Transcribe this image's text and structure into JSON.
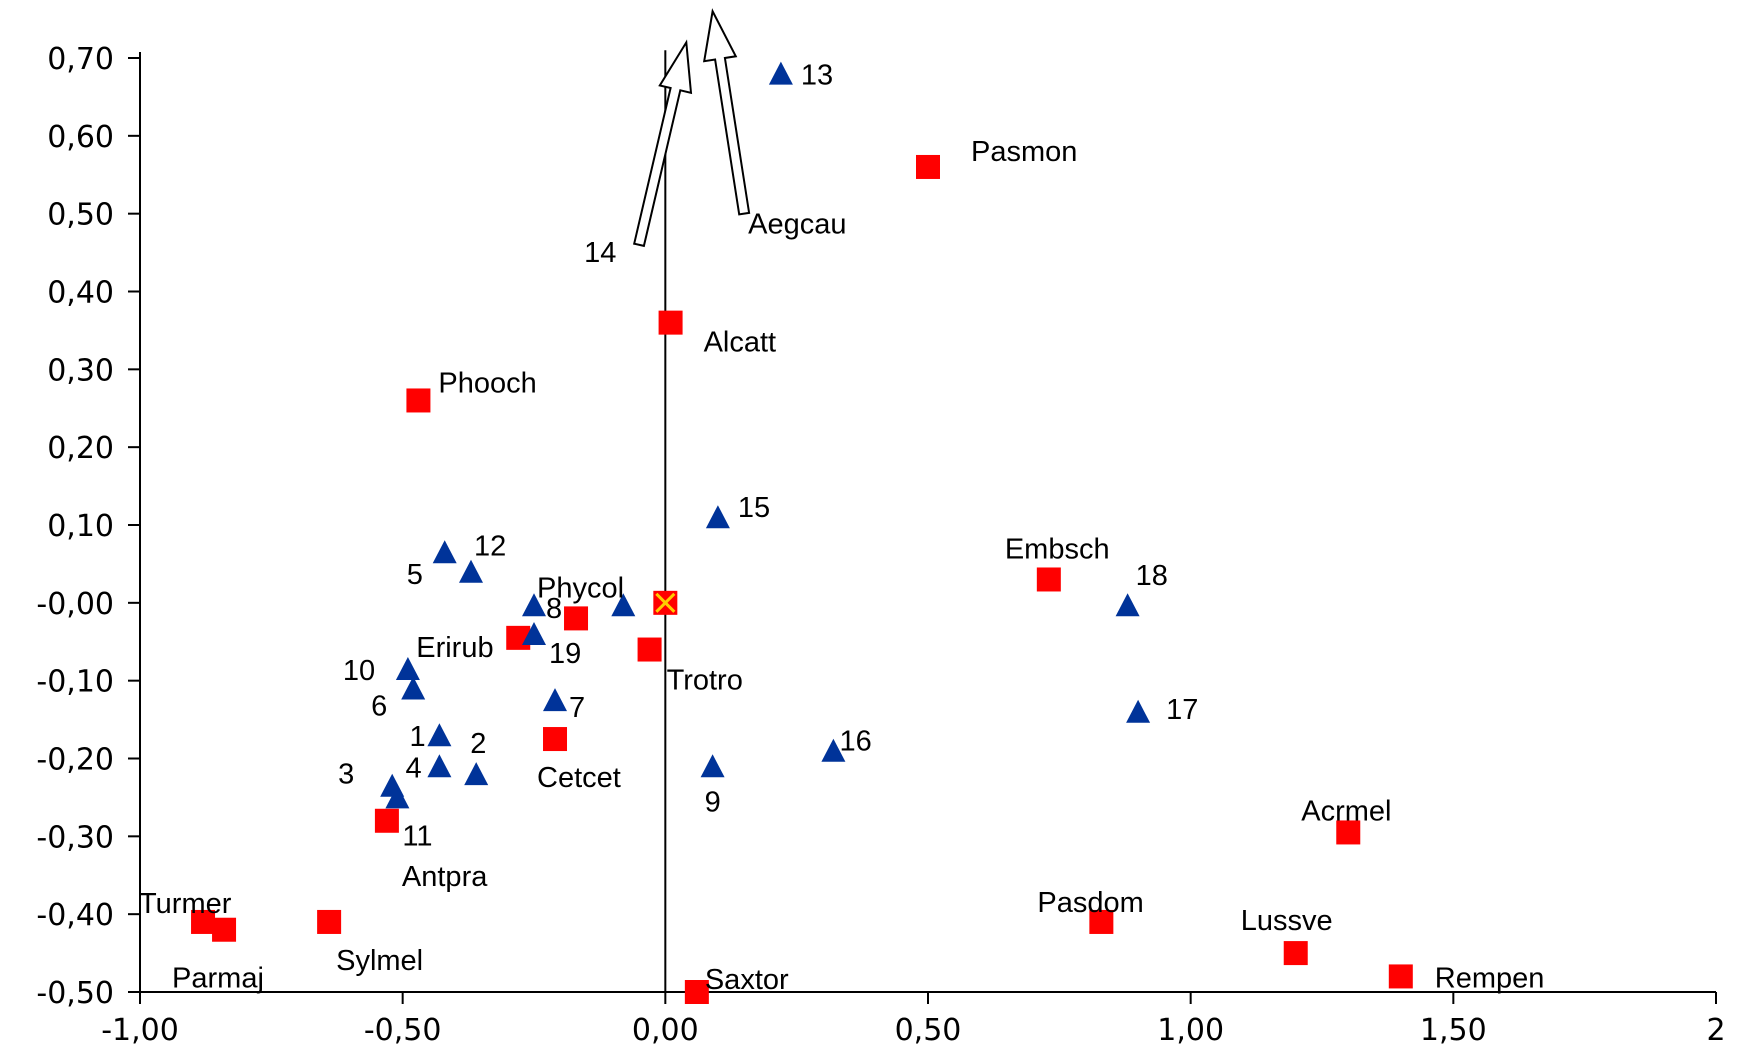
{
  "chart_data": {
    "type": "scatter",
    "title": "",
    "xlabel": "",
    "ylabel": "",
    "xlim": [
      -1.0,
      2.0
    ],
    "ylim": [
      -0.5,
      0.7
    ],
    "x_ticks": [
      "-1,00",
      "-0,50",
      "0,00",
      "0,50",
      "1,00",
      "1,50",
      "2"
    ],
    "x_tick_values": [
      -1.0,
      -0.5,
      0.0,
      0.5,
      1.0,
      1.5,
      2.0
    ],
    "y_ticks": [
      "0,70",
      "0,60",
      "0,50",
      "0,40",
      "0,30",
      "0,20",
      "0,10",
      "-0,00",
      "-0,10",
      "-0,20",
      "-0,30",
      "-0,40",
      "-0,50"
    ],
    "y_tick_values": [
      0.7,
      0.6,
      0.5,
      0.4,
      0.3,
      0.2,
      0.1,
      0.0,
      -0.1,
      -0.2,
      -0.3,
      -0.4,
      -0.5
    ],
    "grid": false,
    "colors": {
      "species": "#ff0000",
      "sites": "#003399",
      "centroid_fill": "#ff0000",
      "centroid_mark": "#ffcc00",
      "arrow_fill": "#ffffff"
    },
    "species": [
      {
        "label": "Pasmon",
        "x": 0.5,
        "y": 0.56
      },
      {
        "label": "Alcatt",
        "x": 0.01,
        "y": 0.36
      },
      {
        "label": "Phooch",
        "x": -0.47,
        "y": 0.26
      },
      {
        "label": "Embsch",
        "x": 0.73,
        "y": 0.03
      },
      {
        "label": "Phycol",
        "x": -0.17,
        "y": -0.02
      },
      {
        "label": "Erirub",
        "x": -0.28,
        "y": -0.045
      },
      {
        "label": "Trotro",
        "x": -0.03,
        "y": -0.06
      },
      {
        "label": "Cetcet",
        "x": -0.21,
        "y": -0.175
      },
      {
        "label": "Antpra",
        "x": -0.53,
        "y": -0.28
      },
      {
        "label": "Acrmel",
        "x": 1.3,
        "y": -0.295
      },
      {
        "label": "Turmer",
        "x": -0.88,
        "y": -0.41
      },
      {
        "label": "Parmaj",
        "x": -0.84,
        "y": -0.42
      },
      {
        "label": "Sylmel",
        "x": -0.64,
        "y": -0.41
      },
      {
        "label": "Pasdom",
        "x": 0.83,
        "y": -0.41
      },
      {
        "label": "Lussve",
        "x": 1.2,
        "y": -0.45
      },
      {
        "label": "Saxtor",
        "x": 0.06,
        "y": -0.5
      },
      {
        "label": "Rempen",
        "x": 1.4,
        "y": -0.48
      }
    ],
    "sites": [
      {
        "label": "13",
        "x": 0.22,
        "y": 0.68
      },
      {
        "label": "15",
        "x": 0.1,
        "y": 0.11
      },
      {
        "label": "5",
        "x": -0.42,
        "y": 0.065
      },
      {
        "label": "12",
        "x": -0.37,
        "y": 0.04
      },
      {
        "label": "8",
        "x": -0.25,
        "y": -0.003
      },
      {
        "label": "19",
        "x": -0.25,
        "y": -0.04
      },
      {
        "label": "",
        "x": -0.08,
        "y": -0.003
      },
      {
        "label": "18",
        "x": 0.88,
        "y": -0.003
      },
      {
        "label": "10",
        "x": -0.49,
        "y": -0.085
      },
      {
        "label": "6",
        "x": -0.48,
        "y": -0.11
      },
      {
        "label": "7",
        "x": -0.21,
        "y": -0.125
      },
      {
        "label": "17",
        "x": 0.9,
        "y": -0.14
      },
      {
        "label": "1",
        "x": -0.43,
        "y": -0.17
      },
      {
        "label": "2",
        "x": -0.36,
        "y": -0.22
      },
      {
        "label": "16",
        "x": 0.32,
        "y": -0.19
      },
      {
        "label": "9",
        "x": 0.09,
        "y": -0.21
      },
      {
        "label": "4",
        "x": -0.43,
        "y": -0.21
      },
      {
        "label": "3",
        "x": -0.52,
        "y": -0.235
      },
      {
        "label": "11",
        "x": -0.51,
        "y": -0.25
      }
    ],
    "centroid": {
      "x": 0.0,
      "y": 0.0
    },
    "arrows": [
      {
        "label": "14",
        "x0": -0.05,
        "y0": 0.46,
        "x1": 0.04,
        "y1": 0.72
      },
      {
        "label": "Aegcau",
        "x0": 0.15,
        "y0": 0.5,
        "x1": 0.09,
        "y1": 0.76
      }
    ]
  }
}
